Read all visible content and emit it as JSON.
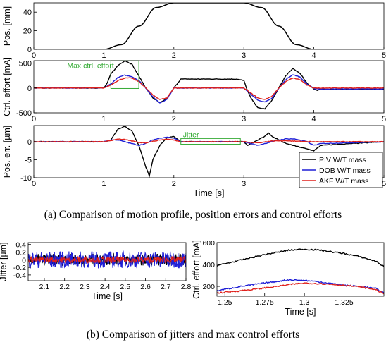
{
  "captions": {
    "a": "(a) Comparison of motion profile, position errors and control efforts",
    "b": "(b) Comparison of jitters and max control efforts"
  },
  "colors": {
    "piv": "#000000",
    "dob": "#1f1fd6",
    "akf": "#e0201b",
    "annotation": "#33aa33"
  },
  "legend": [
    "PIV W/T mass",
    "DOB W/T mass",
    "AKF W/T mass"
  ],
  "chart_data": [
    {
      "id": "pos",
      "type": "line",
      "ylabel": "Pos. [mm]",
      "xlim": [
        0,
        5
      ],
      "ylim": [
        0,
        50
      ],
      "xticks": [
        "0",
        "1",
        "2",
        "3",
        "4",
        "5"
      ],
      "yticks": [
        "0",
        "20",
        "40"
      ],
      "series": [
        {
          "x": [
            0,
            1.0,
            1.25,
            1.5,
            1.75,
            2.0,
            3.0,
            3.25,
            3.5,
            3.75,
            4.0,
            5.0
          ],
          "y": [
            0,
            0,
            5,
            25,
            45,
            50,
            50,
            45,
            25,
            5,
            0,
            0
          ]
        }
      ]
    },
    {
      "id": "effort",
      "type": "line",
      "ylabel": "Ctrl. effort [mA]",
      "xlim": [
        0,
        5
      ],
      "ylim": [
        -500,
        550
      ],
      "xticks": [
        "0",
        "1",
        "2",
        "3",
        "4",
        "5"
      ],
      "yticks": [
        "-500",
        "0",
        "500"
      ],
      "annotation": "Max ctrl. effort",
      "annotation_box": {
        "x": [
          1.1,
          1.5
        ],
        "y": [
          -10,
          560
        ]
      },
      "series": [
        {
          "name": "PIV W/T mass",
          "x": [
            0,
            1.0,
            1.05,
            1.1,
            1.2,
            1.3,
            1.4,
            1.5,
            1.6,
            1.7,
            1.8,
            1.9,
            2.0,
            2.1,
            2.5,
            2.9,
            3.0,
            3.05,
            3.1,
            3.2,
            3.3,
            3.4,
            3.5,
            3.6,
            3.7,
            3.8,
            3.9,
            4.0,
            4.05,
            4.1,
            5.0
          ],
          "y": [
            0,
            0,
            100,
            280,
            450,
            550,
            480,
            240,
            0,
            -200,
            -300,
            -220,
            0,
            180,
            180,
            180,
            150,
            -50,
            -200,
            -400,
            -420,
            -250,
            0,
            250,
            390,
            300,
            100,
            -20,
            -50,
            -30,
            -30
          ]
        },
        {
          "name": "DOB W/T mass",
          "x": [
            0,
            1.0,
            1.1,
            1.2,
            1.3,
            1.4,
            1.5,
            1.6,
            1.7,
            1.8,
            1.9,
            2.0,
            2.5,
            3.0,
            3.1,
            3.2,
            3.3,
            3.4,
            3.5,
            3.6,
            3.7,
            3.8,
            3.9,
            4.0,
            4.1,
            5.0
          ],
          "y": [
            0,
            0,
            80,
            210,
            260,
            230,
            150,
            0,
            -180,
            -300,
            -230,
            0,
            0,
            0,
            -120,
            -250,
            -280,
            -210,
            0,
            170,
            270,
            220,
            80,
            -10,
            -20,
            -20
          ]
        },
        {
          "name": "AKF W/T mass",
          "x": [
            0,
            1.0,
            1.1,
            1.2,
            1.3,
            1.4,
            1.5,
            1.6,
            1.7,
            1.8,
            1.9,
            2.0,
            2.5,
            3.0,
            3.1,
            3.2,
            3.3,
            3.4,
            3.5,
            3.6,
            3.7,
            3.8,
            3.9,
            4.0,
            5.0
          ],
          "y": [
            0,
            0,
            60,
            150,
            200,
            200,
            130,
            0,
            -140,
            -230,
            -200,
            0,
            0,
            0,
            -100,
            -200,
            -230,
            -170,
            0,
            130,
            200,
            170,
            60,
            0,
            0
          ]
        }
      ]
    },
    {
      "id": "error",
      "type": "line",
      "ylabel": "Pos. err. [µm]",
      "xlabel": "Time [s]",
      "xlim": [
        0,
        5
      ],
      "ylim": [
        -10,
        4.5
      ],
      "xticks": [
        "0",
        "1",
        "2",
        "3",
        "4",
        "5"
      ],
      "yticks": [
        "-10",
        "-5",
        "0"
      ],
      "annotation": "Jitter",
      "annotation_box": {
        "x": [
          2.1,
          2.95
        ],
        "y": [
          -0.7,
          0.9
        ]
      },
      "series": [
        {
          "name": "PIV W/T mass",
          "x": [
            0,
            1.0,
            1.1,
            1.15,
            1.2,
            1.3,
            1.4,
            1.5,
            1.6,
            1.65,
            1.7,
            1.8,
            1.9,
            2.0,
            2.1,
            2.9,
            3.0,
            3.05,
            3.1,
            3.2,
            3.3,
            3.35,
            3.4,
            3.5,
            3.6,
            3.7,
            3.8,
            3.9,
            4.0,
            4.1,
            5.0
          ],
          "y": [
            0,
            0,
            0.5,
            2.0,
            3.5,
            4.3,
            3.0,
            -1.0,
            -7.0,
            -9.5,
            -5.0,
            -1.0,
            1.0,
            1.5,
            0,
            0,
            0,
            -1.0,
            -0.5,
            0.5,
            1.5,
            2.5,
            1.5,
            0.5,
            -0.5,
            -1.0,
            -1.5,
            -2.0,
            -2.5,
            -1.0,
            0
          ]
        },
        {
          "name": "DOB W/T mass",
          "x": [
            0,
            1.0,
            1.1,
            1.2,
            1.3,
            1.4,
            1.5,
            1.6,
            1.7,
            1.8,
            1.9,
            2.0,
            2.1,
            2.9,
            3.0,
            3.1,
            3.2,
            3.3,
            3.4,
            3.5,
            3.6,
            3.7,
            3.8,
            3.9,
            4.0,
            4.1,
            5.0
          ],
          "y": [
            0,
            0,
            0.5,
            0.5,
            0,
            -0.5,
            -1.0,
            -0.5,
            0.5,
            1.0,
            1.3,
            1.0,
            0,
            0,
            0,
            -0.5,
            -1.0,
            -0.5,
            0,
            0.5,
            0.8,
            0.8,
            0.5,
            0,
            -1.0,
            -0.5,
            0
          ]
        },
        {
          "name": "AKF W/T mass",
          "x": [
            0,
            1.0,
            1.1,
            1.2,
            1.3,
            1.4,
            1.5,
            1.6,
            1.7,
            1.8,
            1.9,
            2.0,
            2.1,
            2.9,
            3.0,
            3.2,
            3.4,
            3.6,
            3.8,
            4.0,
            5.0
          ],
          "y": [
            0,
            0,
            0.3,
            0.8,
            0.6,
            0.2,
            -0.2,
            -0.3,
            0.1,
            0.5,
            0.7,
            0.5,
            0,
            0,
            0,
            -0.3,
            0.2,
            0.3,
            0.1,
            0,
            0
          ]
        }
      ]
    },
    {
      "id": "jitter",
      "type": "line",
      "ylabel": "Jitter [µm]",
      "xlabel": "Time [s]",
      "xlim": [
        2.02,
        2.8
      ],
      "ylim": [
        -0.55,
        0.45
      ],
      "xticks": [
        "2.1",
        "2.2",
        "2.3",
        "2.4",
        "2.5",
        "2.6",
        "2.7",
        "2.8"
      ],
      "yticks": [
        "-0.4",
        "-0.2",
        "0",
        "0.2",
        "0.4"
      ],
      "noise_amplitude": {
        "PIV W/T mass": 0.15,
        "DOB W/T mass": 0.22,
        "AKF W/T mass": 0.08
      }
    },
    {
      "id": "maxeffort",
      "type": "line",
      "ylabel": "Ctrl. effort [mA]",
      "xlabel": "Time [s]",
      "xlim": [
        1.245,
        1.35
      ],
      "ylim": [
        110,
        600
      ],
      "xticks": [
        "1.25",
        "1.275",
        "1.3",
        "1.325"
      ],
      "yticks": [
        "200",
        "400",
        "600"
      ],
      "series": [
        {
          "name": "PIV W/T mass",
          "x": [
            1.245,
            1.26,
            1.275,
            1.29,
            1.3,
            1.31,
            1.325,
            1.335,
            1.345,
            1.35
          ],
          "y": [
            390,
            440,
            490,
            530,
            540,
            530,
            500,
            470,
            430,
            380
          ]
        },
        {
          "name": "DOB W/T mass",
          "x": [
            1.245,
            1.26,
            1.275,
            1.29,
            1.3,
            1.31,
            1.325,
            1.335,
            1.345,
            1.35
          ],
          "y": [
            160,
            200,
            230,
            260,
            255,
            240,
            210,
            200,
            180,
            140
          ]
        },
        {
          "name": "AKF W/T mass",
          "x": [
            1.245,
            1.26,
            1.275,
            1.29,
            1.3,
            1.31,
            1.325,
            1.335,
            1.345,
            1.35
          ],
          "y": [
            140,
            160,
            185,
            215,
            230,
            225,
            210,
            195,
            170,
            130
          ]
        }
      ]
    }
  ]
}
